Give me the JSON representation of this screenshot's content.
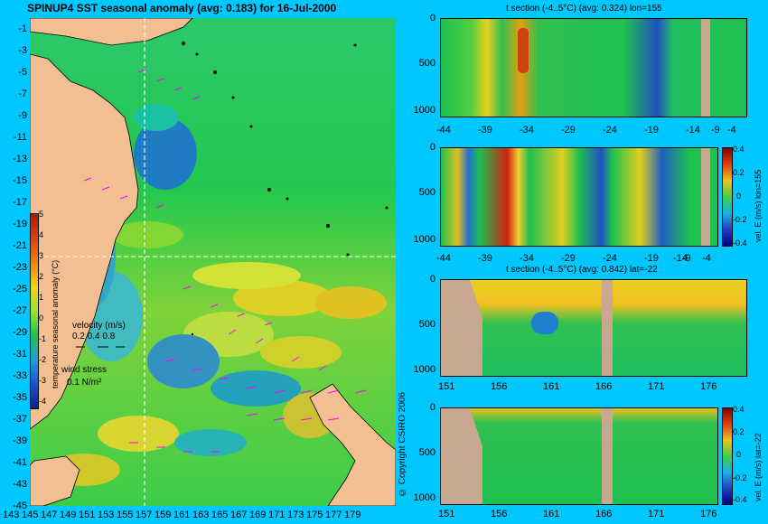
{
  "main_map": {
    "title": "SPINUP4 SST seasonal anomaly (avg: 0.183) for 16-Jul-2000",
    "y_ticks": [
      "-1",
      "-3",
      "-5",
      "-7",
      "-9",
      "-11",
      "-13",
      "-15",
      "-17",
      "-19",
      "-21",
      "-23",
      "-25",
      "-27",
      "-29",
      "-31",
      "-33",
      "-35",
      "-37",
      "-39",
      "-41",
      "-43",
      "-45"
    ],
    "x_ticks": [
      "143",
      "145",
      "147",
      "149",
      "151",
      "153",
      "155",
      "157",
      "159",
      "161",
      "163",
      "165",
      "167",
      "169",
      "171",
      "173",
      "175",
      "177",
      "179"
    ],
    "colorbar": {
      "label": "temperature seasonal anomaly (°C)",
      "ticks": [
        "5",
        "4",
        "3",
        "2",
        "1",
        "0",
        "-1",
        "-2",
        "-3",
        "-4"
      ]
    },
    "velocity_legend": {
      "title": "velocity (m/s)",
      "scale": "0.2 0.4 0.8"
    },
    "wind_legend": {
      "title": "wind stress",
      "scale": "0.1 N/m²"
    },
    "copyright": "© Copyright CSIRO 2006"
  },
  "panels": {
    "p1": {
      "title": "t section (-4..5°C) (avg: 0.324) lon=155",
      "y_ticks": [
        "0",
        "500",
        "1000"
      ],
      "x_ticks": [
        "-44",
        "-39",
        "-34",
        "-29",
        "-24",
        "-19",
        "-14",
        "-9",
        "-4"
      ]
    },
    "p2": {
      "y_ticks": [
        "0",
        "500",
        "1000"
      ],
      "x_ticks": [
        "-44",
        "-39",
        "-34",
        "-29",
        "-24",
        "-19",
        "-14",
        "-9",
        "-4"
      ],
      "cbar_label": "vel. E (m/s) lon=155",
      "cbar_ticks": [
        "0.4",
        "0.2",
        "0",
        "-0.2",
        "-0.4"
      ]
    },
    "p3": {
      "title": "t section (-4..5°C) (avg: 0.842) lat=-22",
      "y_ticks": [
        "0",
        "500",
        "1000"
      ],
      "x_ticks": [
        "151",
        "156",
        "161",
        "166",
        "171",
        "176"
      ]
    },
    "p4": {
      "y_ticks": [
        "0",
        "500",
        "1000"
      ],
      "x_ticks": [
        "151",
        "156",
        "161",
        "166",
        "171",
        "176"
      ],
      "cbar_label": "vel. E (m/s) lat=-22",
      "cbar_ticks": [
        "0.4",
        "0.2",
        "0",
        "-0.2",
        "-0.4"
      ]
    }
  },
  "colors": {
    "background": "#00c8ff",
    "land": "#e8b48a",
    "section_land": "#c8a890",
    "velocity_arrows": "#ff00ff"
  }
}
